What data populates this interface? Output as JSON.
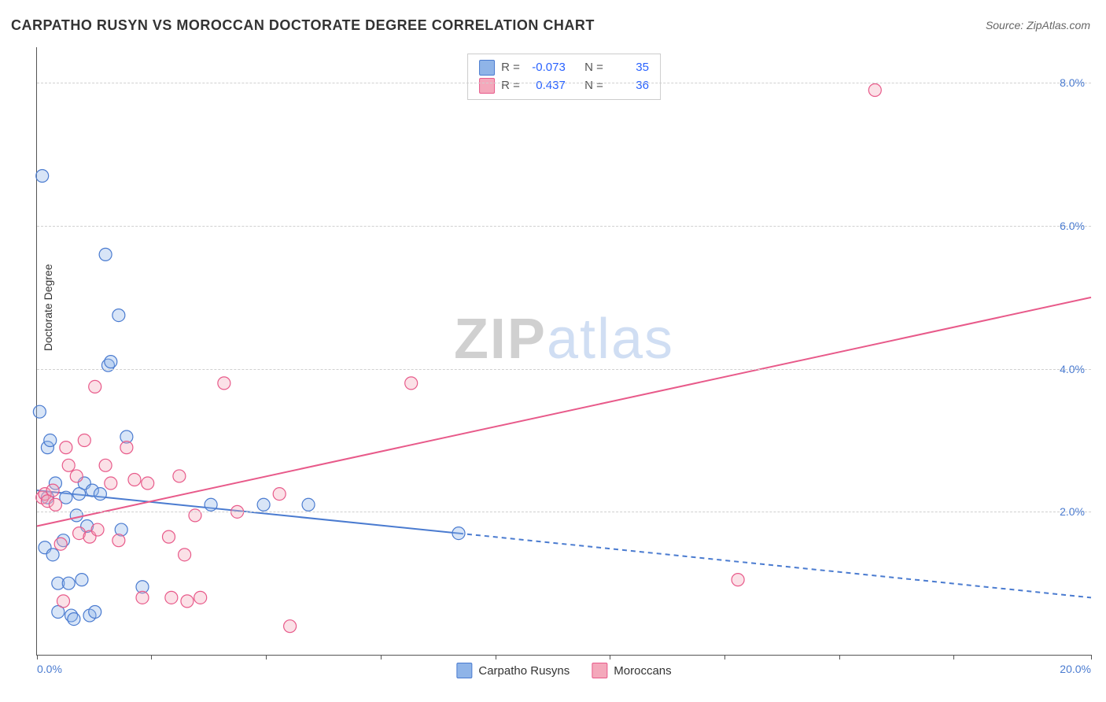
{
  "title": "CARPATHO RUSYN VS MOROCCAN DOCTORATE DEGREE CORRELATION CHART",
  "source_label": "Source: ZipAtlas.com",
  "ylabel": "Doctorate Degree",
  "watermark": {
    "part1": "ZIP",
    "part2": "atlas"
  },
  "chart": {
    "type": "scatter-with-trend",
    "background_color": "#ffffff",
    "grid_color": "#d0d0d0",
    "axis_color": "#555555",
    "tick_label_color": "#4a7bd0",
    "xlim": [
      0,
      20
    ],
    "ylim": [
      0,
      8.5
    ],
    "xticks": [
      0,
      2.17,
      4.35,
      6.52,
      8.7,
      10.87,
      13.04,
      15.22,
      17.39,
      20
    ],
    "xticks_labeled": {
      "0": "0.0%",
      "20": "20.0%"
    },
    "ygrid": [
      2,
      4,
      6,
      8
    ],
    "ytick_labels": {
      "2": "2.0%",
      "4": "4.0%",
      "6": "6.0%",
      "8": "8.0%"
    },
    "marker_radius": 8,
    "marker_fill_opacity": 0.35,
    "marker_stroke_width": 1.2,
    "trend_line_width": 2
  },
  "series": [
    {
      "name": "Carpatho Rusyns",
      "color_fill": "#8fb4e8",
      "color_stroke": "#4a7bd0",
      "r_value": "-0.073",
      "n_value": "35",
      "trend": {
        "x1": 0,
        "y1": 2.3,
        "x2": 8.0,
        "y2": 1.7,
        "x2_ext": 20,
        "y2_ext": 0.8,
        "dashed_after_x": 8.0
      },
      "points": [
        [
          0.05,
          3.4
        ],
        [
          0.1,
          6.7
        ],
        [
          0.15,
          1.5
        ],
        [
          0.2,
          2.9
        ],
        [
          0.2,
          2.2
        ],
        [
          0.25,
          3.0
        ],
        [
          0.3,
          1.4
        ],
        [
          0.35,
          2.4
        ],
        [
          0.4,
          1.0
        ],
        [
          0.4,
          0.6
        ],
        [
          0.5,
          1.6
        ],
        [
          0.55,
          2.2
        ],
        [
          0.6,
          1.0
        ],
        [
          0.65,
          0.55
        ],
        [
          0.7,
          0.5
        ],
        [
          0.75,
          1.95
        ],
        [
          0.8,
          2.25
        ],
        [
          0.85,
          1.05
        ],
        [
          0.9,
          2.4
        ],
        [
          0.95,
          1.8
        ],
        [
          1.0,
          0.55
        ],
        [
          1.05,
          2.3
        ],
        [
          1.1,
          0.6
        ],
        [
          1.2,
          2.25
        ],
        [
          1.3,
          5.6
        ],
        [
          1.35,
          4.05
        ],
        [
          1.4,
          4.1
        ],
        [
          1.55,
          4.75
        ],
        [
          1.6,
          1.75
        ],
        [
          1.7,
          3.05
        ],
        [
          2.0,
          0.95
        ],
        [
          3.3,
          2.1
        ],
        [
          4.3,
          2.1
        ],
        [
          5.15,
          2.1
        ],
        [
          8.0,
          1.7
        ]
      ]
    },
    {
      "name": "Moroccans",
      "color_fill": "#f4a8bb",
      "color_stroke": "#e85a8a",
      "r_value": "0.437",
      "n_value": "36",
      "trend": {
        "x1": 0,
        "y1": 1.8,
        "x2": 20,
        "y2": 5.0,
        "dashed_after_x": null
      },
      "points": [
        [
          0.1,
          2.2
        ],
        [
          0.15,
          2.25
        ],
        [
          0.2,
          2.15
        ],
        [
          0.3,
          2.3
        ],
        [
          0.35,
          2.1
        ],
        [
          0.45,
          1.55
        ],
        [
          0.5,
          0.75
        ],
        [
          0.55,
          2.9
        ],
        [
          0.6,
          2.65
        ],
        [
          0.75,
          2.5
        ],
        [
          0.8,
          1.7
        ],
        [
          0.9,
          3.0
        ],
        [
          1.0,
          1.65
        ],
        [
          1.1,
          3.75
        ],
        [
          1.15,
          1.75
        ],
        [
          1.3,
          2.65
        ],
        [
          1.4,
          2.4
        ],
        [
          1.55,
          1.6
        ],
        [
          1.7,
          2.9
        ],
        [
          1.85,
          2.45
        ],
        [
          2.0,
          0.8
        ],
        [
          2.1,
          2.4
        ],
        [
          2.5,
          1.65
        ],
        [
          2.55,
          0.8
        ],
        [
          2.7,
          2.5
        ],
        [
          2.8,
          1.4
        ],
        [
          2.85,
          0.75
        ],
        [
          3.0,
          1.95
        ],
        [
          3.1,
          0.8
        ],
        [
          3.55,
          3.8
        ],
        [
          3.8,
          2.0
        ],
        [
          4.6,
          2.25
        ],
        [
          4.8,
          0.4
        ],
        [
          7.1,
          3.8
        ],
        [
          13.3,
          1.05
        ],
        [
          15.9,
          7.9
        ]
      ]
    }
  ],
  "legend_top": {
    "r_label": "R =",
    "n_label": "N ="
  },
  "legend_bottom": {
    "items": [
      "Carpatho Rusyns",
      "Moroccans"
    ]
  }
}
